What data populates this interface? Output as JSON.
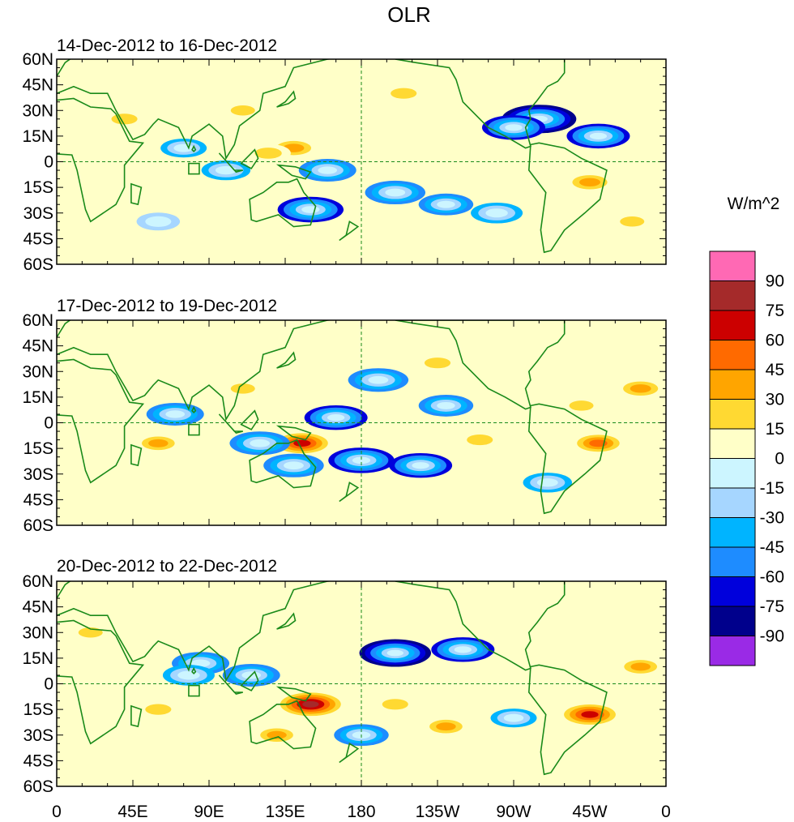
{
  "title": "OLR",
  "panels": [
    {
      "label": "14-Dec-2012 to 16-Dec-2012"
    },
    {
      "label": "17-Dec-2012 to 19-Dec-2012"
    },
    {
      "label": "20-Dec-2012 to 22-Dec-2012"
    }
  ],
  "lat_labels": [
    "60N",
    "45N",
    "30N",
    "15N",
    "0",
    "15S",
    "30S",
    "45S",
    "60S"
  ],
  "lon_labels": [
    "0",
    "45E",
    "90E",
    "135E",
    "180",
    "135W",
    "90W",
    "45W",
    "0"
  ],
  "colorbar": {
    "unit": "W/m^2",
    "tick_labels": [
      "90",
      "75",
      "60",
      "45",
      "30",
      "15",
      "0",
      "-15",
      "-30",
      "-45",
      "-60",
      "-75",
      "-90"
    ],
    "colors": [
      "#ff69b4",
      "#a52a2a",
      "#cc0000",
      "#ff6a00",
      "#ffa500",
      "#ffd932",
      "#ffffc8",
      "#ccf5ff",
      "#a6d6ff",
      "#00b4ff",
      "#1e8cff",
      "#0000dc",
      "#00008c",
      "#9a2ae6"
    ]
  },
  "anomalies": [
    [
      {
        "lon": 140,
        "lat": 8,
        "v": 35
      },
      {
        "lon": 125,
        "lat": 5,
        "v": 28
      },
      {
        "lon": 160,
        "lat": -5,
        "v": -50
      },
      {
        "lon": 200,
        "lat": -18,
        "v": -55
      },
      {
        "lon": 230,
        "lat": -25,
        "v": -45
      },
      {
        "lon": 260,
        "lat": -30,
        "v": -40
      },
      {
        "lon": 285,
        "lat": 25,
        "v": -80
      },
      {
        "lon": 270,
        "lat": 20,
        "v": -60
      },
      {
        "lon": 320,
        "lat": 15,
        "v": -60
      },
      {
        "lon": 150,
        "lat": -28,
        "v": -65
      },
      {
        "lon": 100,
        "lat": -5,
        "v": -35
      },
      {
        "lon": 75,
        "lat": 8,
        "v": -30
      },
      {
        "lon": 40,
        "lat": 25,
        "v": 25
      },
      {
        "lon": 315,
        "lat": -12,
        "v": 35
      },
      {
        "lon": 205,
        "lat": 40,
        "v": 25
      },
      {
        "lon": 110,
        "lat": 30,
        "v": 20
      },
      {
        "lon": 60,
        "lat": -35,
        "v": -25
      },
      {
        "lon": 340,
        "lat": -35,
        "v": 20
      }
    ],
    [
      {
        "lon": 145,
        "lat": -12,
        "v": 60
      },
      {
        "lon": 120,
        "lat": -12,
        "v": -55
      },
      {
        "lon": 165,
        "lat": 3,
        "v": -60
      },
      {
        "lon": 180,
        "lat": -22,
        "v": -65
      },
      {
        "lon": 215,
        "lat": -25,
        "v": -60
      },
      {
        "lon": 190,
        "lat": 25,
        "v": -55
      },
      {
        "lon": 230,
        "lat": 10,
        "v": -45
      },
      {
        "lon": 320,
        "lat": -12,
        "v": 45
      },
      {
        "lon": 70,
        "lat": 5,
        "v": -50
      },
      {
        "lon": 140,
        "lat": -25,
        "v": -55
      },
      {
        "lon": 60,
        "lat": -12,
        "v": 30
      },
      {
        "lon": 310,
        "lat": 10,
        "v": 20
      },
      {
        "lon": 225,
        "lat": 35,
        "v": 25
      },
      {
        "lon": 345,
        "lat": 20,
        "v": 35
      },
      {
        "lon": 250,
        "lat": -10,
        "v": 25
      },
      {
        "lon": 290,
        "lat": -35,
        "v": -35
      },
      {
        "lon": 110,
        "lat": 20,
        "v": 20
      }
    ],
    [
      {
        "lon": 150,
        "lat": -12,
        "v": 75
      },
      {
        "lon": 85,
        "lat": 12,
        "v": -50
      },
      {
        "lon": 78,
        "lat": 5,
        "v": -40
      },
      {
        "lon": 200,
        "lat": 18,
        "v": -75
      },
      {
        "lon": 240,
        "lat": 20,
        "v": -60
      },
      {
        "lon": 315,
        "lat": -18,
        "v": 60
      },
      {
        "lon": 200,
        "lat": -12,
        "v": 25
      },
      {
        "lon": 115,
        "lat": 5,
        "v": -50
      },
      {
        "lon": 130,
        "lat": -30,
        "v": 30
      },
      {
        "lon": 180,
        "lat": -30,
        "v": -45
      },
      {
        "lon": 345,
        "lat": 10,
        "v": 30
      },
      {
        "lon": 230,
        "lat": -25,
        "v": 30
      },
      {
        "lon": 60,
        "lat": -15,
        "v": 25
      },
      {
        "lon": 270,
        "lat": -20,
        "v": -30
      },
      {
        "lon": 20,
        "lat": 30,
        "v": 20
      }
    ]
  ]
}
